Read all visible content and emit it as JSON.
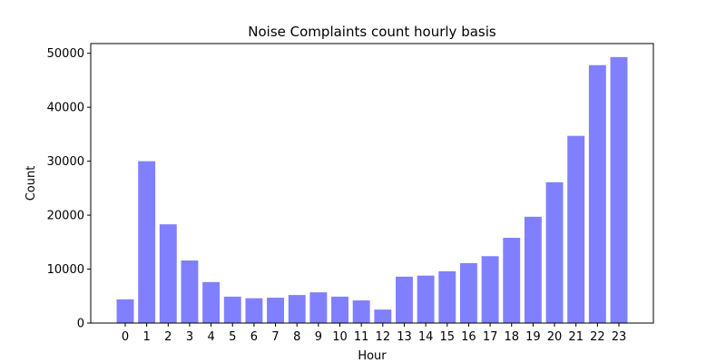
{
  "chart_data": {
    "type": "bar",
    "title": "Noise Complaints count hourly basis",
    "xlabel": "Hour",
    "ylabel": "Count",
    "categories": [
      "0",
      "1",
      "2",
      "3",
      "4",
      "5",
      "6",
      "7",
      "8",
      "9",
      "10",
      "11",
      "12",
      "13",
      "14",
      "15",
      "16",
      "17",
      "18",
      "19",
      "20",
      "21",
      "22",
      "23"
    ],
    "values": [
      4400,
      30000,
      18300,
      11600,
      7600,
      4900,
      4600,
      4700,
      5200,
      5700,
      4900,
      4200,
      2500,
      8600,
      8800,
      9600,
      11100,
      12400,
      15800,
      19700,
      26100,
      34700,
      47800,
      49300
    ],
    "ylim": [
      0,
      51800
    ],
    "yticks": [
      0,
      10000,
      20000,
      30000,
      40000,
      50000
    ],
    "grid": false,
    "bar_color": "#8080ff"
  }
}
